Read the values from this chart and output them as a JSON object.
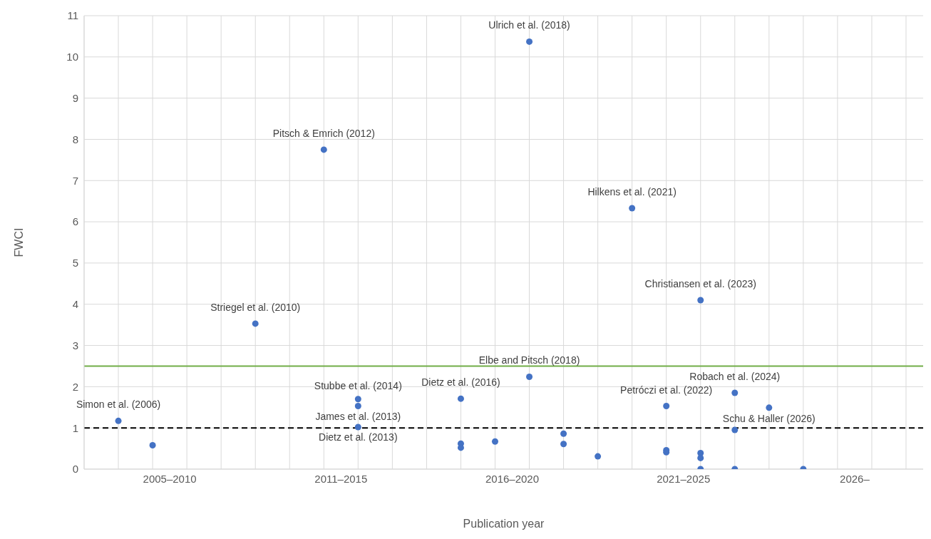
{
  "chart_data": {
    "type": "scatter",
    "xlabel": "Publication year",
    "ylabel": "FWCI",
    "categories": [
      null,
      null,
      null,
      null,
      null,
      "2005–2010",
      null,
      null,
      null,
      null,
      null,
      null,
      null,
      null,
      null,
      "2011–2015",
      null,
      null,
      null,
      null,
      null,
      null,
      null,
      null,
      null,
      "2016–2020",
      null,
      null,
      null,
      null,
      null,
      null,
      null,
      null,
      null,
      "2021–2025",
      null,
      null,
      null,
      null,
      null,
      null,
      null,
      null,
      null,
      "2026–",
      null,
      null,
      null,
      null
    ],
    "series": [
      {
        "color": "#4472c4",
        "values": [
          null,
          null,
          1.17,
          null,
          0.58,
          null,
          null,
          null,
          null,
          null,
          3.53,
          null,
          null,
          null,
          7.75,
          null,
          1.7,
          null,
          null,
          null,
          null,
          null,
          1.71,
          null,
          0.67,
          null,
          10.37,
          null,
          0.86,
          null,
          0.31,
          null,
          6.33,
          null,
          1.53,
          null,
          4.1,
          null,
          1.85,
          null,
          1.49,
          null,
          0,
          null,
          null,
          null,
          null,
          null,
          null,
          null
        ]
      },
      {
        "color": "#4472c4",
        "values": [
          null,
          null,
          null,
          null,
          null,
          null,
          null,
          null,
          null,
          null,
          null,
          null,
          null,
          null,
          null,
          null,
          1.53,
          null,
          null,
          null,
          null,
          null,
          0.62,
          null,
          null,
          null,
          2.24,
          null,
          0.61,
          null,
          null,
          null,
          null,
          null,
          0.46,
          null,
          0.39,
          null,
          0.95,
          null,
          null,
          null,
          null,
          null,
          null,
          null,
          null,
          null,
          null,
          null
        ]
      },
      {
        "color": "#4472c4",
        "values": [
          null,
          null,
          null,
          null,
          null,
          null,
          null,
          null,
          null,
          null,
          null,
          null,
          null,
          null,
          null,
          null,
          1.02,
          null,
          null,
          null,
          null,
          null,
          0.52,
          null,
          null,
          null,
          null,
          null,
          null,
          null,
          null,
          null,
          null,
          null,
          0.41,
          null,
          0.27,
          null,
          0,
          null,
          null,
          null,
          null,
          null,
          null,
          null,
          null,
          null,
          null,
          null
        ]
      },
      {
        "color": "#4472c4",
        "values": [
          null,
          null,
          null,
          null,
          null,
          null,
          null,
          null,
          null,
          null,
          null,
          null,
          null,
          null,
          null,
          null,
          null,
          null,
          null,
          null,
          null,
          null,
          null,
          null,
          null,
          null,
          null,
          null,
          null,
          null,
          null,
          null,
          null,
          null,
          null,
          null,
          0,
          null,
          null,
          null,
          null,
          null,
          null,
          null,
          null,
          null,
          null,
          null,
          null,
          null
        ]
      }
    ],
    "marker": "circle",
    "ylim": [
      0,
      11
    ],
    "yticks": [
      0,
      1,
      2,
      3,
      4,
      5,
      6,
      7,
      8,
      9,
      10,
      11
    ],
    "grid": true,
    "ref_lines": [
      {
        "axis": "y",
        "value": 1,
        "color": "#000000",
        "line_style": "dashed"
      },
      {
        "axis": "y",
        "value": 2.5,
        "color": "#70ad47",
        "line_style": "solid"
      }
    ],
    "annotations": [
      {
        "text": "Simon et al. (2006)",
        "y": 1.17
      },
      {
        "text": "Striegel et al. (2010)",
        "y": 3.53
      },
      {
        "text": "Pitsch & Emrich (2012)",
        "y": 7.75
      },
      {
        "text": "Stubbe et al. (2014)",
        "y": 1.7
      },
      {
        "text": "James et al. (2013)",
        "y": 1.53
      },
      {
        "text": "Dietz et al. (2013)",
        "y": 1.02
      },
      {
        "text": "Dietz et al. (2016)",
        "y": 1.71
      },
      {
        "text": "Ulrich et al. (2018)",
        "y": 10.37
      },
      {
        "text": "Elbe and Pitsch (2018)",
        "y": 2.24
      },
      {
        "text": "Hilkens et al. (2021)",
        "y": 6.33
      },
      {
        "text": "Petróczi et al. (2022)",
        "y": 1.53
      },
      {
        "text": "Christiansen et al. (2023)",
        "y": 4.1
      },
      {
        "text": "Robach et al. (2024)",
        "y": 1.85
      },
      {
        "text": "Schu & Haller (2026)",
        "y": 1.49
      }
    ]
  }
}
